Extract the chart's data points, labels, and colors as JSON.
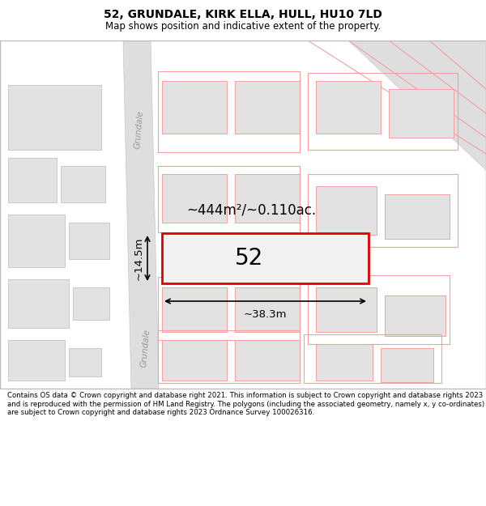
{
  "title": "52, GRUNDALE, KIRK ELLA, HULL, HU10 7LD",
  "subtitle": "Map shows position and indicative extent of the property.",
  "footnote": "Contains OS data © Crown copyright and database right 2021. This information is subject to Crown copyright and database rights 2023 and is reproduced with the permission of HM Land Registry. The polygons (including the associated geometry, namely x, y co-ordinates) are subject to Crown copyright and database rights 2023 Ordnance Survey 100026316.",
  "bg_color": "#ffffff",
  "road_color": "#dedede",
  "road_edge": "#c8c8c8",
  "bldg_fill": "#e2e2e2",
  "bldg_edge": "#c8c8c8",
  "pink_edge": "#f5a0a0",
  "red_edge": "#e00000",
  "plot_fill": "#ececec",
  "dim_color": "#000000",
  "area_text": "~444m²/~0.110ac.",
  "number_text": "52",
  "width_label": "~38.3m",
  "height_label": "~14.5m",
  "road_label": "Grundale",
  "title_fontsize": 10,
  "subtitle_fontsize": 8.5,
  "footnote_fontsize": 6.2
}
